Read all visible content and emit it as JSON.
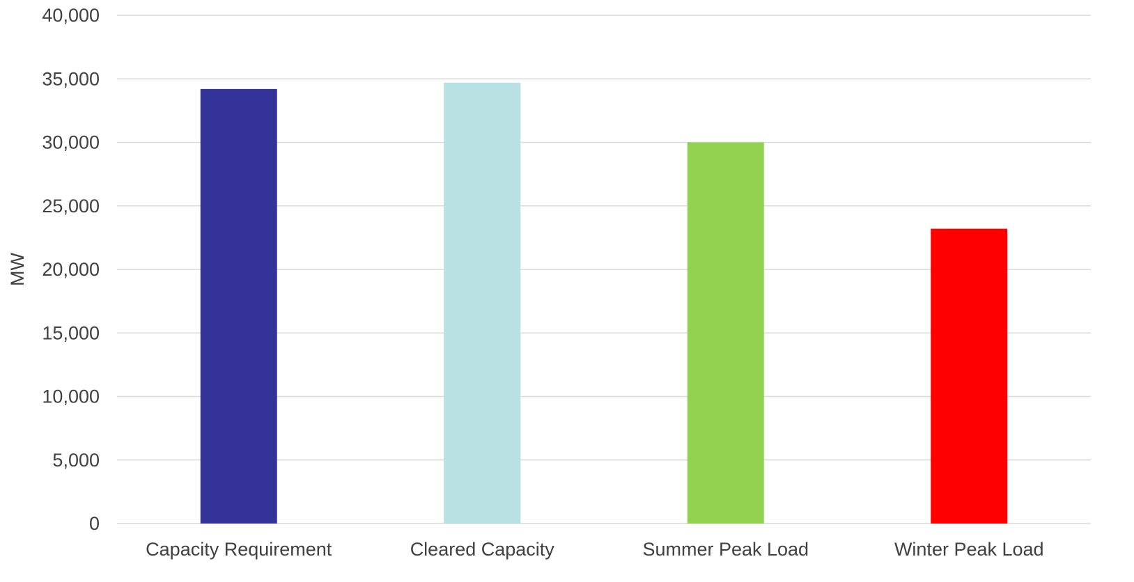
{
  "chart_data": {
    "type": "bar",
    "title": "",
    "xlabel": "",
    "ylabel": "MW",
    "ylim": [
      0,
      40000
    ],
    "y_ticks": [
      0,
      5000,
      10000,
      15000,
      20000,
      25000,
      30000,
      35000,
      40000
    ],
    "y_tick_labels": [
      "0",
      "5,000",
      "10,000",
      "15,000",
      "20,000",
      "25,000",
      "30,000",
      "35,000",
      "40,000"
    ],
    "categories": [
      "Capacity Requirement",
      "Cleared Capacity",
      "Summer Peak Load",
      "Winter Peak Load"
    ],
    "values": [
      34200,
      34700,
      30000,
      23200
    ],
    "colors": [
      "#333399",
      "#b9e0e3",
      "#92d050",
      "#ff0000"
    ],
    "grid": true,
    "legend": "none"
  }
}
